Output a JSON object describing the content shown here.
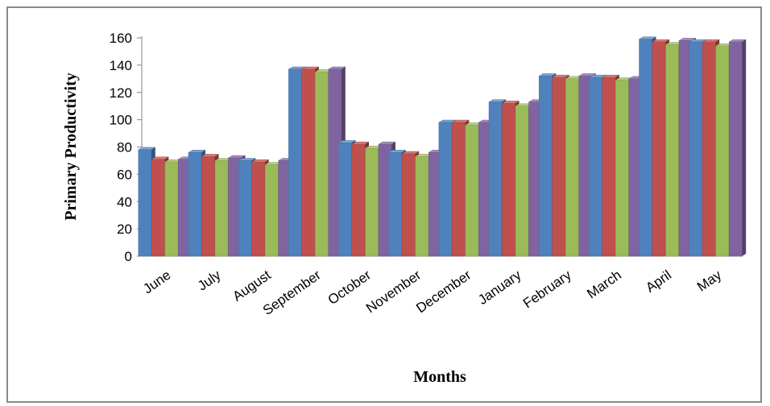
{
  "chart_data": {
    "type": "bar",
    "style": "3d-clustered-column",
    "categories": [
      "June",
      "July",
      "August",
      "September",
      "October",
      "November",
      "December",
      "January",
      "February",
      "March",
      "April",
      "May"
    ],
    "series": [
      {
        "color": "#4F81BD",
        "values": [
          78,
          76,
          70,
          137,
          83,
          76,
          98,
          113,
          132,
          131,
          159,
          157
        ]
      },
      {
        "color": "#C0504D",
        "values": [
          71,
          73,
          69,
          137,
          82,
          75,
          98,
          112,
          131,
          131,
          157,
          157
        ]
      },
      {
        "color": "#9BBB59",
        "values": [
          69,
          70,
          67,
          135,
          79,
          73,
          96,
          110,
          130,
          129,
          155,
          154
        ]
      },
      {
        "color": "#8064A2",
        "values": [
          71,
          72,
          70,
          137,
          82,
          76,
          98,
          113,
          132,
          130,
          158,
          157
        ]
      }
    ],
    "yticks": [
      0,
      20,
      40,
      60,
      80,
      100,
      120,
      140,
      160
    ],
    "ylim": [
      0,
      160
    ],
    "xlabel": "Months",
    "ylabel": "Primary Productivity",
    "grid": false,
    "legend": "none"
  }
}
